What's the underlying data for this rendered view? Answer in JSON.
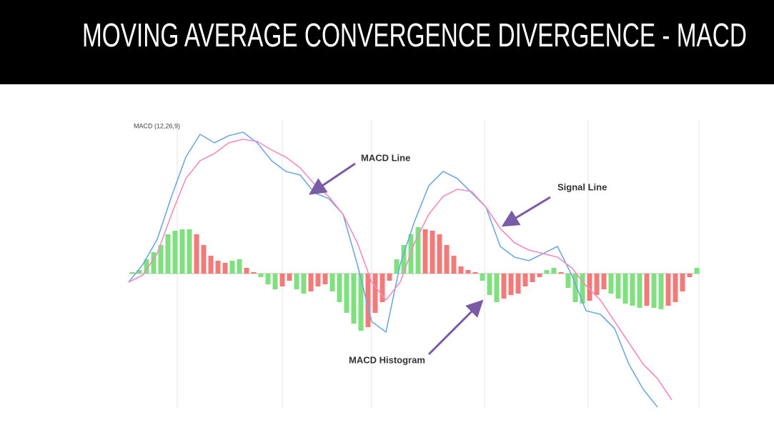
{
  "chart_data": {
    "type": "macd",
    "title": "MOVING AVERAGE CONVERGENCE DIVERGENCE - MACD",
    "indicator_label": "MACD (12,26,9)",
    "xlim": [
      0,
      80
    ],
    "ylim": [
      -190,
      200
    ],
    "series": [
      {
        "name": "MACD Line",
        "color": "#6fa8e0",
        "x": [
          0,
          2,
          4,
          6,
          8,
          10,
          12,
          14,
          16,
          18,
          20,
          22,
          24,
          26,
          28,
          30,
          32,
          34,
          36,
          38,
          40,
          42,
          44,
          46,
          48,
          50,
          52,
          54,
          56,
          58,
          60,
          62,
          64,
          66,
          68,
          70,
          72,
          74,
          76,
          78,
          80
        ],
        "values": [
          -12,
          13,
          48,
          108,
          163,
          195,
          183,
          193,
          198,
          183,
          158,
          143,
          138,
          113,
          105,
          83,
          13,
          -67,
          -82,
          13,
          73,
          123,
          143,
          133,
          113,
          93,
          38,
          23,
          18,
          28,
          38,
          -2,
          -52,
          -57,
          -77,
          -127,
          -162,
          -187,
          null,
          null,
          null
        ]
      },
      {
        "name": "Signal Line",
        "color": "#f08cbf",
        "x": [
          0,
          2,
          4,
          6,
          8,
          10,
          12,
          14,
          16,
          18,
          20,
          22,
          24,
          26,
          28,
          30,
          32,
          34,
          36,
          38,
          40,
          42,
          44,
          46,
          48,
          50,
          52,
          54,
          56,
          58,
          60,
          62,
          64,
          66,
          68,
          70,
          72,
          74,
          76,
          78,
          80
        ],
        "values": [
          -12,
          -2,
          28,
          83,
          133,
          158,
          168,
          183,
          188,
          185,
          173,
          163,
          148,
          125,
          108,
          83,
          43,
          -12,
          -37,
          -12,
          43,
          83,
          108,
          118,
          115,
          93,
          63,
          43,
          33,
          28,
          23,
          8,
          -17,
          -37,
          -67,
          -97,
          -127,
          -147,
          -177,
          null,
          null
        ]
      }
    ],
    "histogram": {
      "name": "MACD Histogram",
      "rising_color": "#7ee07e",
      "falling_color": "#f47a7a",
      "x": [
        0.5,
        1.5,
        2.5,
        3.5,
        4.5,
        5.5,
        6.5,
        7.5,
        8.5,
        9.5,
        10.5,
        11.5,
        12.5,
        13.5,
        14.5,
        15.5,
        16.5,
        17.5,
        18.5,
        19.5,
        20.5,
        21.5,
        22.5,
        23.5,
        24.5,
        25.5,
        26.5,
        27.5,
        28.5,
        29.5,
        30.5,
        31.5,
        32.5,
        33.5,
        34.5,
        35.5,
        36.5,
        37.5,
        38.5,
        39.5,
        40.5,
        41.5,
        42.5,
        43.5,
        44.5,
        45.5,
        46.5,
        47.5,
        48.5,
        49.5,
        50.5,
        51.5,
        52.5,
        53.5,
        54.5,
        55.5,
        56.5,
        57.5,
        58.5,
        59.5,
        60.5,
        61.5,
        62.5,
        63.5,
        64.5,
        65.5,
        66.5,
        67.5,
        68.5,
        69.5,
        70.5,
        71.5,
        72.5,
        73.5,
        74.5,
        75.5,
        76.5,
        77.5,
        78.5,
        79.5
      ],
      "values": [
        2,
        5,
        20,
        30,
        40,
        55,
        60,
        62,
        62,
        55,
        40,
        25,
        18,
        15,
        18,
        20,
        8,
        2,
        -5,
        -15,
        -22,
        -18,
        -10,
        -22,
        -28,
        -25,
        -18,
        -15,
        -25,
        -40,
        -55,
        -70,
        -80,
        -75,
        -55,
        -40,
        -10,
        20,
        40,
        55,
        65,
        62,
        60,
        55,
        40,
        25,
        10,
        5,
        2,
        -10,
        -30,
        -40,
        -35,
        -30,
        -28,
        -18,
        -12,
        -5,
        5,
        8,
        2,
        -20,
        -40,
        -42,
        -38,
        -30,
        -22,
        -28,
        -35,
        -42,
        -45,
        -48,
        -45,
        -48,
        -50,
        -45,
        -40,
        -25,
        -5,
        8
      ]
    },
    "annotations": [
      "MACD Line",
      "Signal Line",
      "MACD Histogram"
    ]
  }
}
